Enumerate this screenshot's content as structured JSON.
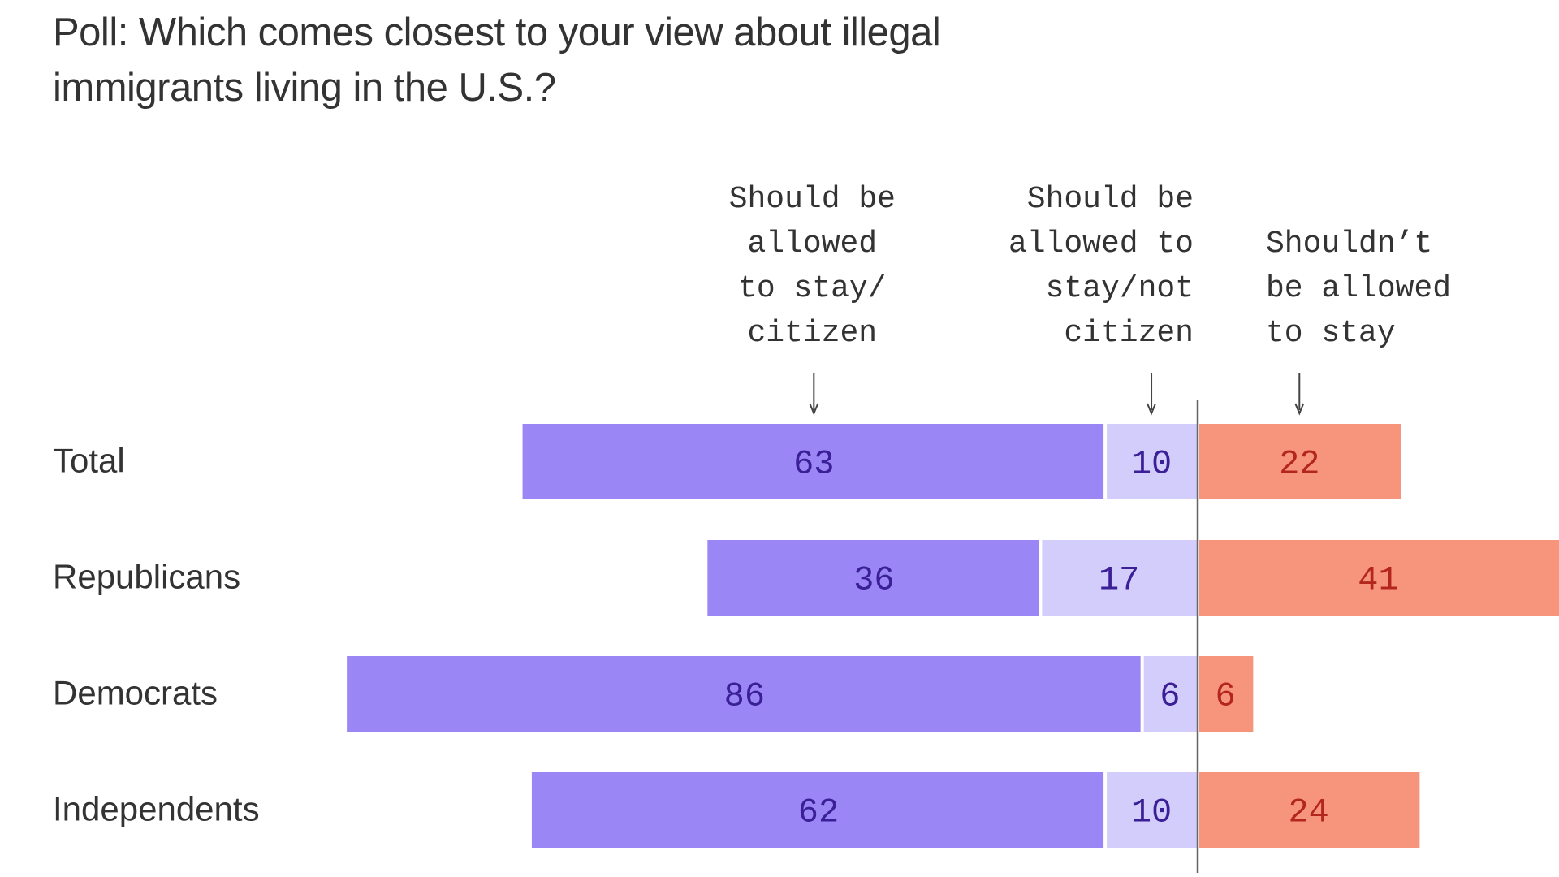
{
  "chart_data": {
    "type": "diverging-bar",
    "title": "Poll: Which comes closest to your view about illegal immigrants living in the U.S.?",
    "categories": [
      "Total",
      "Republicans",
      "Democrats",
      "Independents"
    ],
    "series": [
      {
        "name": "Should be allowed to stay/ citizen",
        "color": "#9a87f5",
        "values": [
          63,
          36,
          86,
          62
        ]
      },
      {
        "name": "Should be allowed to stay/not citizen",
        "color": "#d3cdfb",
        "values": [
          10,
          17,
          6,
          10
        ]
      },
      {
        "name": "Shouldn’t be allowed to stay",
        "color": "#f7957c",
        "values": [
          22,
          41,
          6,
          24
        ]
      }
    ]
  }
}
